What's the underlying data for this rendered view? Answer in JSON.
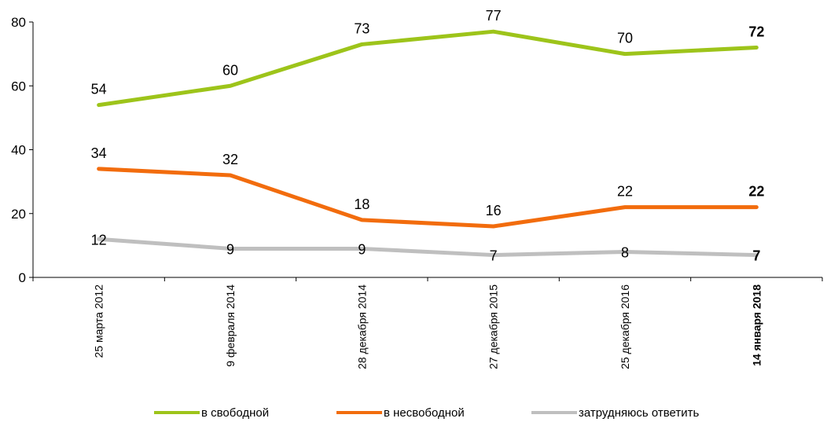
{
  "chart_data": {
    "type": "line",
    "categories": [
      "25 марта 2012",
      "9 февраля 2014",
      "28 декабря 2014",
      "27 декабря 2015",
      "25 декабря 2016",
      "14 января 2018"
    ],
    "series": [
      {
        "name": "в свободной",
        "values": [
          54,
          60,
          73,
          77,
          70,
          72
        ],
        "color": "#9dc41a"
      },
      {
        "name": "в несвободной",
        "values": [
          34,
          32,
          18,
          16,
          22,
          22
        ],
        "color": "#f26c0d"
      },
      {
        "name": "затрудняюсь ответить",
        "values": [
          12,
          9,
          9,
          7,
          8,
          7
        ],
        "color": "#bfbfbf"
      }
    ],
    "ylim": [
      0,
      80
    ],
    "yticks": [
      "0",
      "20",
      "40",
      "60",
      "80"
    ],
    "grid": false,
    "legend_position": "bottom",
    "emphasized_category": "14 января 2018"
  }
}
